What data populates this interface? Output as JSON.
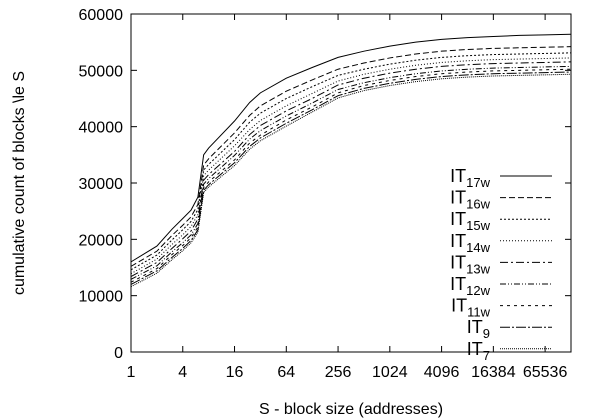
{
  "chart_data": {
    "type": "line",
    "title": "",
    "xlabel": "S - block size (addresses)",
    "ylabel": "cumulative count of blocks \\le S",
    "x_scale": "log2",
    "xlim": [
      1,
      131072
    ],
    "ylim": [
      0,
      60000
    ],
    "x_ticks": [
      1,
      4,
      16,
      64,
      256,
      1024,
      4096,
      16384,
      65536
    ],
    "x_tick_labels": [
      "1",
      "4",
      "16",
      "64",
      "256",
      "1024",
      "4096",
      "16384",
      "65536"
    ],
    "y_ticks": [
      0,
      10000,
      20000,
      30000,
      40000,
      50000,
      60000
    ],
    "y_tick_labels": [
      "0",
      "10000",
      "20000",
      "30000",
      "40000",
      "50000",
      "60000"
    ],
    "grid": false,
    "legend_position": "center-right",
    "x": [
      1,
      2,
      3,
      4,
      5,
      6,
      7,
      8,
      16,
      24,
      32,
      64,
      128,
      256,
      512,
      1024,
      2048,
      4096,
      8192,
      16384,
      32768,
      65536,
      131072
    ],
    "series": [
      {
        "name": "IT17w",
        "label_base": "IT",
        "label_sub": "17w",
        "dash": "",
        "values": [
          16000,
          18800,
          21800,
          23700,
          25200,
          27500,
          35000,
          36200,
          41000,
          44300,
          46000,
          48600,
          50500,
          52300,
          53400,
          54300,
          55000,
          55500,
          55800,
          56000,
          56200,
          56300,
          56400
        ]
      },
      {
        "name": "IT16w",
        "label_base": "IT",
        "label_sub": "16w",
        "dash": "6,3",
        "values": [
          15200,
          17900,
          20700,
          22500,
          24000,
          26200,
          33200,
          34300,
          38900,
          42000,
          43700,
          46300,
          48300,
          50200,
          51300,
          52200,
          52900,
          53400,
          53700,
          53900,
          54000,
          54100,
          54200
        ]
      },
      {
        "name": "IT15w",
        "label_base": "IT",
        "label_sub": "15w",
        "dash": "2,2",
        "values": [
          14600,
          17200,
          19900,
          21700,
          23200,
          25300,
          32300,
          33300,
          37700,
          40800,
          42400,
          45000,
          47100,
          49100,
          50200,
          51100,
          51800,
          52300,
          52600,
          52800,
          52900,
          53000,
          53100
        ]
      },
      {
        "name": "IT14w",
        "label_base": "IT",
        "label_sub": "14w",
        "dash": "1,2",
        "values": [
          13900,
          16500,
          19100,
          20800,
          22300,
          24400,
          31300,
          32300,
          36600,
          39500,
          41100,
          43700,
          45900,
          48100,
          49300,
          50200,
          50900,
          51400,
          51700,
          51900,
          52000,
          52100,
          52200
        ]
      },
      {
        "name": "IT13w",
        "label_base": "IT",
        "label_sub": "13w",
        "dash": "8,3,2,3",
        "values": [
          13400,
          15900,
          18400,
          20100,
          21500,
          23600,
          30500,
          31500,
          35600,
          38600,
          40200,
          42800,
          45000,
          47400,
          48600,
          49500,
          50200,
          50700,
          51000,
          51200,
          51300,
          51400,
          51500
        ]
      },
      {
        "name": "IT12w",
        "label_base": "IT",
        "label_sub": "12w",
        "dash": "6,2,1,2,1,2",
        "values": [
          12900,
          15300,
          17800,
          19400,
          20800,
          22800,
          29800,
          30800,
          34900,
          37800,
          39300,
          41900,
          44200,
          46600,
          47800,
          48700,
          49400,
          49900,
          50200,
          50400,
          50500,
          50600,
          50700
        ]
      },
      {
        "name": "IT11w",
        "label_base": "IT",
        "label_sub": "11w",
        "dash": "3,4",
        "values": [
          12400,
          14800,
          17300,
          18900,
          20300,
          22200,
          29200,
          30200,
          34100,
          37100,
          38500,
          41200,
          43500,
          46000,
          47300,
          48200,
          48900,
          49400,
          49700,
          49900,
          50000,
          50100,
          50200
        ]
      },
      {
        "name": "IT9",
        "label_base": "IT",
        "label_sub": "9",
        "dash": "10,2,2,2",
        "values": [
          12000,
          14400,
          16800,
          18400,
          19800,
          21700,
          28700,
          29700,
          33600,
          36500,
          38000,
          40600,
          43000,
          45500,
          46800,
          47700,
          48400,
          48900,
          49200,
          49400,
          49500,
          49600,
          49700
        ]
      },
      {
        "name": "IT7",
        "label_base": "IT",
        "label_sub": "7",
        "dash": "1,1",
        "values": [
          11600,
          14000,
          16400,
          18000,
          19400,
          21300,
          28300,
          29300,
          33100,
          36000,
          37500,
          40100,
          42600,
          45100,
          46400,
          47300,
          48000,
          48500,
          48800,
          49000,
          49100,
          49200,
          49300
        ]
      }
    ]
  }
}
